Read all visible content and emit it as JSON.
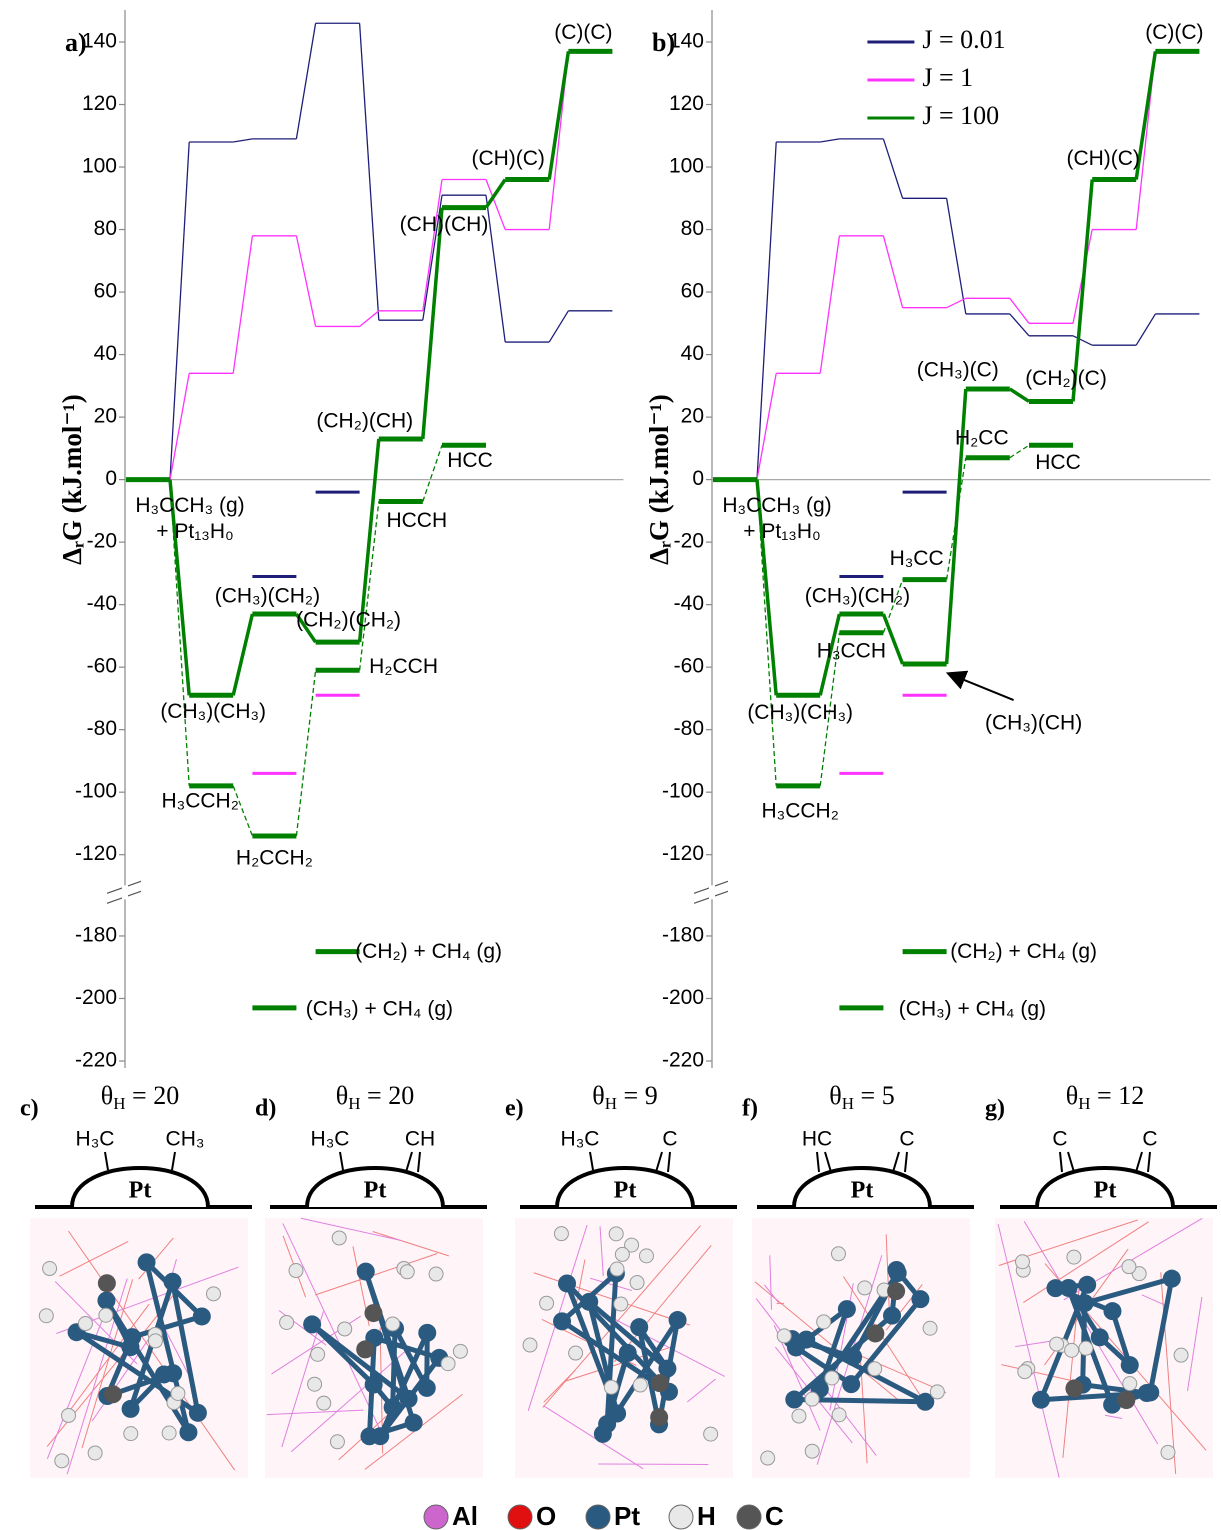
{
  "chart_data": [
    {
      "type": "energy-profile",
      "panel": "a)",
      "ylabel": "ΔᵣG (kJ.mol⁻¹)",
      "ylim": [
        -220,
        140
      ],
      "yticks": [
        140,
        120,
        100,
        80,
        60,
        40,
        20,
        0,
        -20,
        -40,
        -60,
        -80,
        -100,
        -120,
        -180,
        -200,
        -220
      ],
      "legend": false,
      "series": [
        {
          "color": "#1f1f7a",
          "values": [
            0,
            108,
            109,
            146,
            51,
            91,
            44,
            54
          ],
          "aux_values": [
            null,
            null,
            -31,
            -4,
            null,
            null,
            null,
            null
          ]
        },
        {
          "color": "#ff33ff",
          "values": [
            0,
            34,
            78,
            49,
            54,
            96,
            80,
            137
          ],
          "aux_values": [
            null,
            null,
            -94,
            -69,
            null,
            null,
            null,
            null
          ]
        },
        {
          "color": "#008000",
          "values": [
            0,
            -69,
            -43,
            -52,
            13,
            87,
            96,
            137
          ],
          "labels": [
            "H₃CCH₃ (g)",
            "(CH₃)(CH₃)",
            "(CH₃)(CH₂)",
            "(CH₂)(CH₂)",
            "(CH₂)(CH)",
            "(CH)(CH)",
            "(CH)(C)",
            "(C)(C)"
          ]
        }
      ],
      "start_note": "+ Pt₁₃H₀",
      "alt_levels": {
        "values": [
          null,
          -98,
          -114,
          -61,
          -7,
          11,
          null,
          null
        ],
        "labels": [
          null,
          "H₃CCH₂",
          "H₂CCH₂",
          "H₂CCH",
          "HCCH",
          "HCC",
          null,
          null
        ]
      },
      "gas_levels": {
        "values": [
          null,
          null,
          -203,
          -185,
          null,
          null,
          null,
          null
        ],
        "labels": [
          null,
          null,
          "(CH₃) + CH₄ (g)",
          "(CH₂) + CH₄ (g)",
          null,
          null,
          null,
          null
        ]
      }
    },
    {
      "type": "energy-profile",
      "panel": "b)",
      "ylabel": "ΔᵣG (kJ.mol⁻¹)",
      "ylim": [
        -220,
        140
      ],
      "yticks": [
        140,
        120,
        100,
        80,
        60,
        40,
        20,
        0,
        -20,
        -40,
        -60,
        -80,
        -100,
        -120,
        -180,
        -200,
        -220
      ],
      "legend": "upper right",
      "series": [
        {
          "name": "J = 0.01",
          "color": "#1f1f7a",
          "values": [
            0,
            108,
            109,
            90,
            53,
            46,
            43,
            53
          ],
          "aux_values": [
            null,
            null,
            -31,
            -4,
            null,
            null,
            null,
            null
          ]
        },
        {
          "name": "J = 1",
          "color": "#ff33ff",
          "values": [
            0,
            34,
            78,
            55,
            58,
            50,
            80,
            137
          ],
          "aux_values": [
            null,
            null,
            -94,
            -69,
            null,
            null,
            null,
            null
          ]
        },
        {
          "name": "J = 100",
          "color": "#008000",
          "values": [
            0,
            -69,
            -43,
            -59,
            29,
            25,
            96,
            137
          ],
          "labels": [
            "H₃CCH₃ (g)",
            "(CH₃)(CH₃)",
            "(CH₃)(CH₂)",
            "(CH₃)(CH)",
            "(CH₃)(C)",
            "(CH₂)(C)",
            "(CH)(C)",
            "(C)(C)"
          ]
        }
      ],
      "start_note": "+ Pt₁₃H₀",
      "alt_levels": {
        "values": [
          null,
          -98,
          -49,
          -32,
          7,
          11,
          null,
          null
        ],
        "labels": [
          null,
          "H₃CCH₂",
          "H₃CCH",
          "H₃CC",
          "H₂CC",
          "HCC",
          null,
          null
        ]
      },
      "gas_levels": {
        "values": [
          null,
          null,
          -203,
          -185,
          null,
          null,
          null,
          null
        ],
        "labels": [
          null,
          null,
          "(CH₃) + CH₄ (g)",
          "(CH₂) + CH₄ (g)",
          null,
          null,
          null,
          null
        ]
      }
    }
  ],
  "structures": [
    {
      "panel": "c)",
      "theta": "θH = 20",
      "left": "H₃C",
      "right": "CH₃",
      "center": "Pt"
    },
    {
      "panel": "d)",
      "theta": "θH = 20",
      "left": "H₃C",
      "right": "CH",
      "center": "Pt"
    },
    {
      "panel": "e)",
      "theta": "θH = 9",
      "left": "H₃C",
      "right": "C",
      "center": "Pt"
    },
    {
      "panel": "f)",
      "theta": "θH = 5",
      "left": "HC",
      "right": "C",
      "center": "Pt"
    },
    {
      "panel": "g)",
      "theta": "θH = 12",
      "left": "C",
      "right": "C",
      "center": "Pt"
    }
  ],
  "atom_legend": [
    {
      "label": "Al",
      "color": "#cc66cc"
    },
    {
      "label": "O",
      "color": "#e01010"
    },
    {
      "label": "Pt",
      "color": "#2a5a80"
    },
    {
      "label": "H",
      "color": "#e8e8e8"
    },
    {
      "label": "C",
      "color": "#555555"
    }
  ]
}
